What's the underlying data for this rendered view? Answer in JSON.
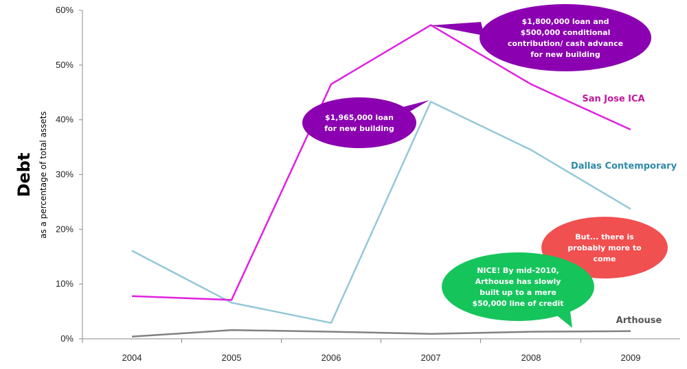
{
  "chart_data": {
    "type": "line",
    "x": [
      "2004",
      "2005",
      "2006",
      "2007",
      "2008",
      "2009"
    ],
    "ylabel": "Debt",
    "ylabel_sub": "as a percentage of total assets",
    "ylim": [
      0,
      60
    ],
    "yticks": [
      "0%",
      "10%",
      "20%",
      "30%",
      "40%",
      "50%",
      "60%"
    ],
    "ytick_values": [
      0,
      10,
      20,
      30,
      40,
      50,
      60
    ],
    "grid": false,
    "series": [
      {
        "name": "San Jose ICA",
        "color": "#e020e0",
        "label_color": "#c0179c",
        "values": [
          7.8,
          7.1,
          46.5,
          57.3,
          46.5,
          38.2
        ]
      },
      {
        "name": "Dallas Contemporary",
        "color": "#93c8d8",
        "label_color": "#2e8aa8",
        "values": [
          16.1,
          6.6,
          2.9,
          43.3,
          34.5,
          23.7
        ]
      },
      {
        "name": "Arthouse",
        "color": "#808080",
        "label_color": "#555555",
        "values": [
          0.4,
          1.6,
          1.3,
          0.9,
          1.3,
          1.4
        ]
      }
    ],
    "annotations": [
      {
        "color": "#8b00b0",
        "lines": [
          "$1,800,000 loan and",
          "$500,000 conditional",
          "contribution/ cash advance",
          "for new building"
        ]
      },
      {
        "color": "#8b00b0",
        "lines": [
          "$1,965,000 loan",
          "for new building"
        ]
      },
      {
        "color": "#f05050",
        "lines": [
          "But...  there is",
          "probably more to",
          "come"
        ]
      },
      {
        "color": "#16c45c",
        "lines": [
          "NICE! By mid-2010,",
          "Arthouse has slowly",
          "built up to a mere",
          "$50,000 line of credit"
        ]
      }
    ]
  }
}
